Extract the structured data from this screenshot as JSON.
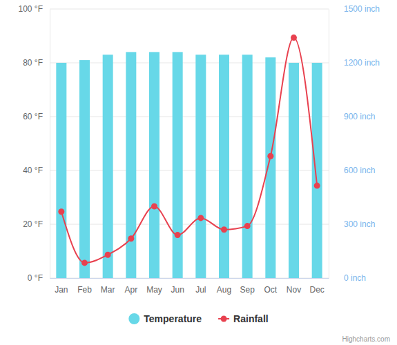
{
  "chart_data": {
    "type": "bar",
    "categories": [
      "Jan",
      "Feb",
      "Mar",
      "Apr",
      "May",
      "Jun",
      "Jul",
      "Aug",
      "Sep",
      "Oct",
      "Nov",
      "Dec"
    ],
    "series": [
      {
        "name": "Temperature",
        "type": "bar",
        "color": "#67d8e8",
        "marker": "circle",
        "values": [
          80,
          81,
          83,
          84,
          84,
          84,
          83,
          83,
          83,
          82,
          80,
          80
        ]
      },
      {
        "name": "Rainfall",
        "type": "line",
        "axis": "y2",
        "color": "#e8414f",
        "marker": "circle",
        "line_style": "spline",
        "values": [
          370,
          85,
          130,
          220,
          400,
          240,
          335,
          270,
          290,
          680,
          1340,
          515
        ]
      }
    ],
    "ylim": [
      0,
      100
    ],
    "yticks": [
      {
        "value": 0,
        "label": "0 °F"
      },
      {
        "value": 20,
        "label": "20 °F"
      },
      {
        "value": 40,
        "label": "40 °F"
      },
      {
        "value": 60,
        "label": "60 °F"
      },
      {
        "value": 80,
        "label": "80 °F"
      },
      {
        "value": 100,
        "label": "100 °F"
      }
    ],
    "y2lim": [
      0,
      1500
    ],
    "y2ticks": [
      {
        "value": 0,
        "label": "0 inch"
      },
      {
        "value": 300,
        "label": "300 inch"
      },
      {
        "value": 600,
        "label": "600 inch"
      },
      {
        "value": 900,
        "label": "900 inch"
      },
      {
        "value": 1200,
        "label": "1200 inch"
      },
      {
        "value": 1500,
        "label": "1500 inch"
      }
    ],
    "grid": true,
    "legend": "bottom",
    "credits": "Highcharts.com"
  }
}
